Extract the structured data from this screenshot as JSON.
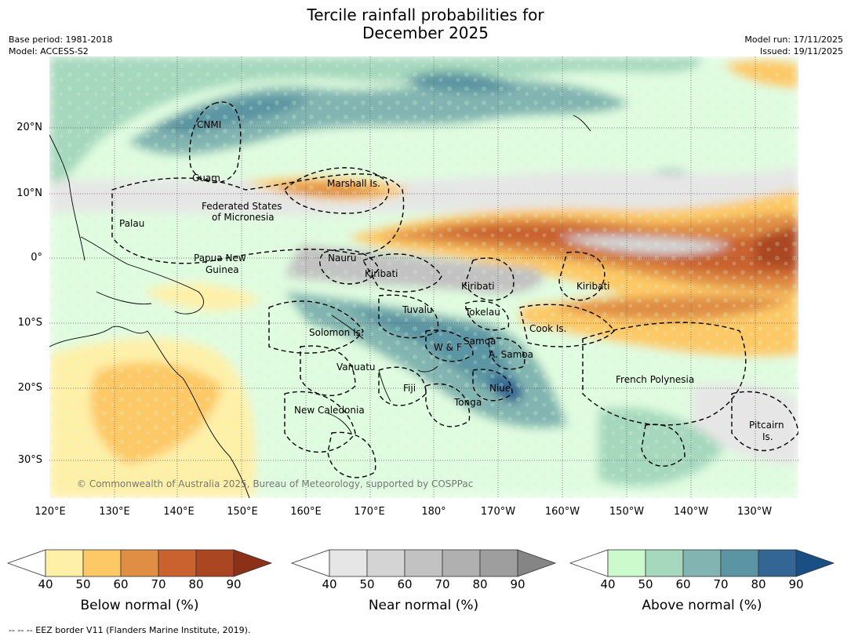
{
  "title_line1": "Tercile rainfall probabilities for",
  "title_line2": "December 2025",
  "base_period": "Base period: 1981-2018",
  "model": "Model: ACCESS-S2",
  "model_run": "Model run: 17/11/2025",
  "issued": "Issued: 19/11/2025",
  "copyright": "© Commonwealth of Australia 2025, Bureau of Meteorology, supported by COSPPac",
  "footnote": "--  --  -- EEZ border V11 (Flanders Marine Institute, 2019).",
  "lat_labels": [
    "20°N",
    "10°N",
    "0°",
    "10°S",
    "20°S",
    "30°S"
  ],
  "lon_labels": [
    "120°E",
    "130°E",
    "140°E",
    "150°E",
    "160°E",
    "170°E",
    "180°",
    "170°W",
    "160°W",
    "150°W",
    "140°W",
    "130°W"
  ],
  "places": [
    {
      "name": "CNMI"
    },
    {
      "name": "Guam"
    },
    {
      "name": "Marshall Is."
    },
    {
      "name": "Federated States"
    },
    {
      "name": "of Micronesia"
    },
    {
      "name": "Palau"
    },
    {
      "name": "Papua New"
    },
    {
      "name": "Guinea"
    },
    {
      "name": "Nauru"
    },
    {
      "name": "Kiribati"
    },
    {
      "name": "Kiribati"
    },
    {
      "name": "Kiribati"
    },
    {
      "name": "Tuvalu"
    },
    {
      "name": "Tokelau"
    },
    {
      "name": "Cook Is."
    },
    {
      "name": "Solomon Is."
    },
    {
      "name": "W & F"
    },
    {
      "name": "Samoa"
    },
    {
      "name": "A. Samoa"
    },
    {
      "name": "Vanuatu"
    },
    {
      "name": "Fiji"
    },
    {
      "name": "Niue"
    },
    {
      "name": "Tonga"
    },
    {
      "name": "French Polynesia"
    },
    {
      "name": "New Caledonia"
    },
    {
      "name": "Pitcairn"
    },
    {
      "name": "Is."
    }
  ],
  "colorbars": [
    {
      "label": "Below normal (%)",
      "ticks": [
        "40",
        "50",
        "60",
        "70",
        "80",
        "90"
      ],
      "colors": [
        "#ffffff",
        "#fff0a8",
        "#fdc966",
        "#e08e44",
        "#c9622e",
        "#ab4622",
        "#8c3018"
      ]
    },
    {
      "label": "Near normal (%)",
      "ticks": [
        "40",
        "50",
        "60",
        "70",
        "80",
        "90"
      ],
      "colors": [
        "#ffffff",
        "#e6e6e6",
        "#d4d4d4",
        "#c2c2c2",
        "#b0b0b0",
        "#9e9e9e",
        "#858585"
      ]
    },
    {
      "label": "Above normal (%)",
      "ticks": [
        "40",
        "50",
        "60",
        "70",
        "80",
        "90"
      ],
      "colors": [
        "#ffffff",
        "#ccfacc",
        "#a6d8bd",
        "#82b5b1",
        "#5b95a3",
        "#336694",
        "#1a4f85"
      ]
    }
  ]
}
